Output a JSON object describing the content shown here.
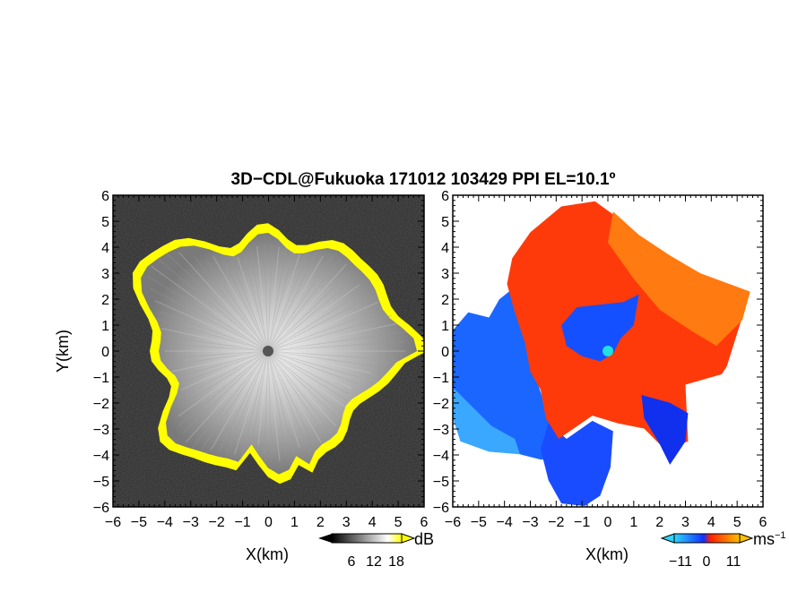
{
  "title": "3D−CDL@Fukuoka 171012 103429 PPI EL=10.1º",
  "chart_data": [
    {
      "type": "heatmap",
      "panel": "left",
      "xlabel": "X(km)",
      "ylabel": "Y(km)",
      "xlim": [
        -6,
        6
      ],
      "ylim": [
        -6,
        6
      ],
      "xticks": [
        "−6",
        "−5",
        "−4",
        "−3",
        "−2",
        "−1",
        "0",
        "1",
        "2",
        "3",
        "4",
        "5",
        "6"
      ],
      "yticks": [
        "6",
        "5",
        "4",
        "3",
        "2",
        "1",
        "0",
        "−1",
        "−2",
        "−3",
        "−4",
        "−5",
        "−6"
      ],
      "radar_site": [
        0,
        0
      ],
      "colorbar": {
        "unit": "dB",
        "ticks": [
          "6",
          "12",
          "18"
        ],
        "colors": [
          "#000000",
          "#ffffff",
          "#ffff00"
        ]
      }
    },
    {
      "type": "heatmap",
      "panel": "right",
      "xlabel": "X(km)",
      "ylabel": "",
      "xlim": [
        -6,
        6
      ],
      "ylim": [
        -6,
        6
      ],
      "xticks": [
        "−6",
        "−5",
        "−4",
        "−3",
        "−2",
        "−1",
        "0",
        "1",
        "2",
        "3",
        "4",
        "5",
        "6"
      ],
      "yticks": [
        "6",
        "5",
        "4",
        "3",
        "2",
        "1",
        "0",
        "−1",
        "−2",
        "−3",
        "−4",
        "−5",
        "−6"
      ],
      "radar_site": [
        0,
        0
      ],
      "colorbar": {
        "unit": "ms",
        "unit_exp": "−1",
        "ticks": [
          "−11",
          "0",
          "11"
        ],
        "colors": [
          "#2fd4ff",
          "#1040ff",
          "#ff2000",
          "#ffc000"
        ]
      }
    }
  ]
}
